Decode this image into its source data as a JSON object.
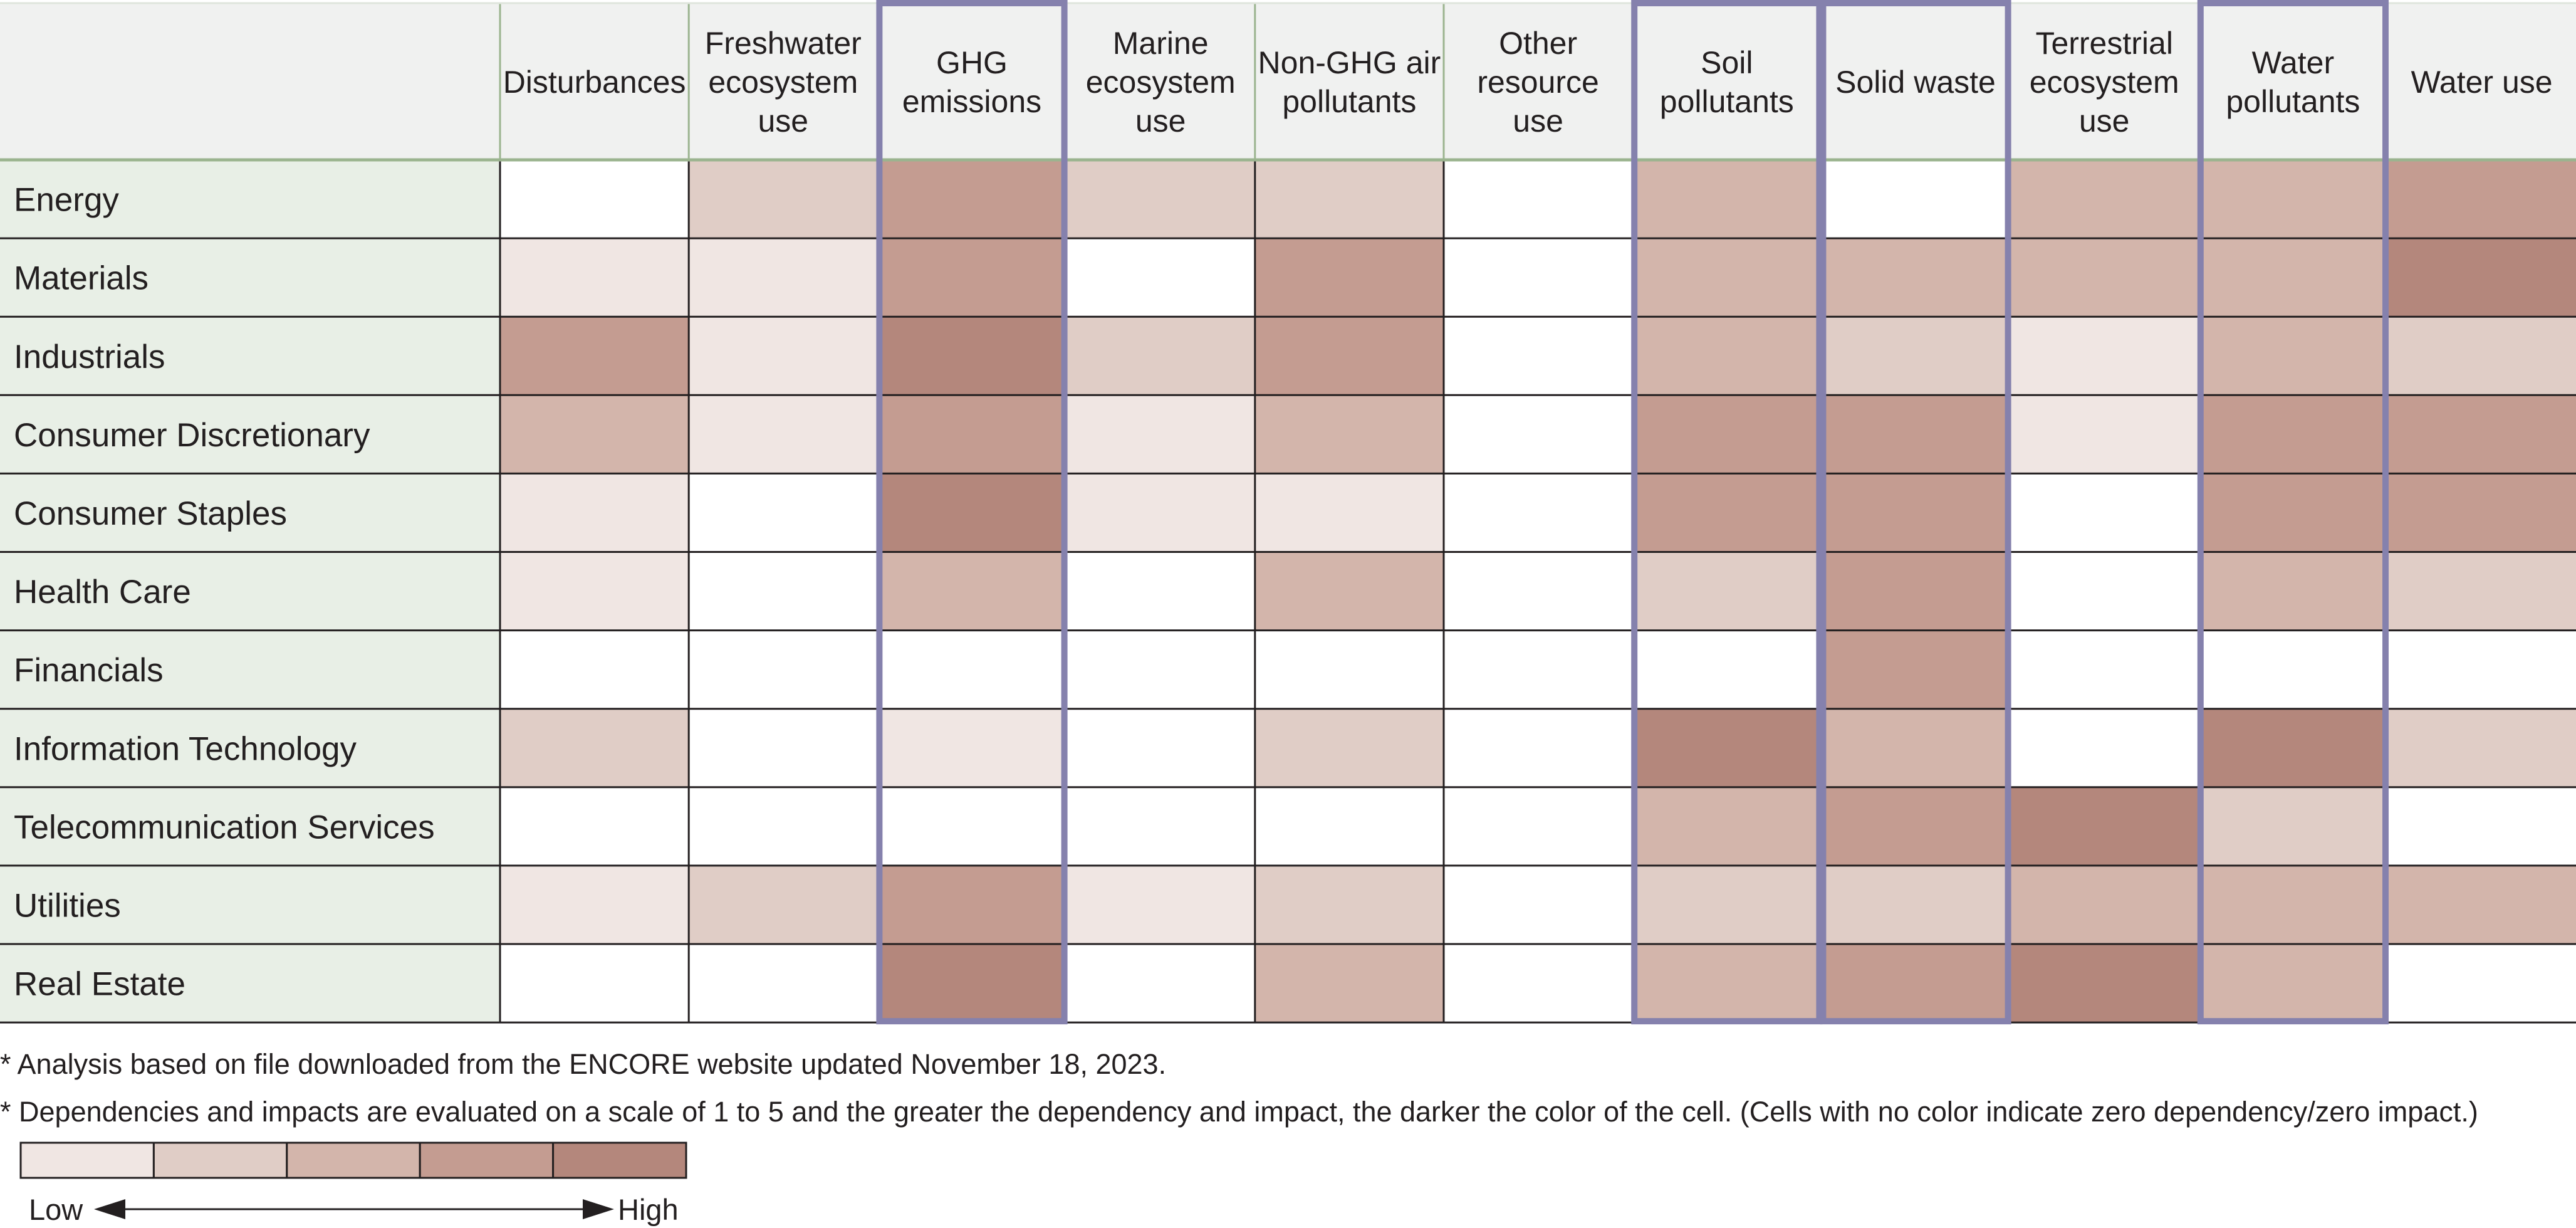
{
  "chart_data": {
    "type": "heatmap",
    "columns": [
      "Disturbances",
      "Freshwater ecosystem use",
      "GHG emissions",
      "Marine ecosystem use",
      "Non-GHG air pollutants",
      "Other resource use",
      "Soil pollutants",
      "Solid waste",
      "Terrestrial ecosystem use",
      "Water pollutants",
      "Water use"
    ],
    "column_lines": [
      [
        "Disturbances"
      ],
      [
        "Freshwater",
        "ecosystem",
        "use"
      ],
      [
        "GHG",
        "emissions"
      ],
      [
        "Marine",
        "ecosystem",
        "use"
      ],
      [
        "Non-GHG air",
        "pollutants"
      ],
      [
        "Other",
        "resource",
        "use"
      ],
      [
        "Soil",
        "pollutants"
      ],
      [
        "Solid waste"
      ],
      [
        "Terrestrial",
        "ecosystem",
        "use"
      ],
      [
        "Water",
        "pollutants"
      ],
      [
        "Water use"
      ]
    ],
    "rows": [
      "Energy",
      "Materials",
      "Industrials",
      "Consumer Discretionary",
      "Consumer Staples",
      "Health Care",
      "Financials",
      "Information Technology",
      "Telecommunication Services",
      "Utilities",
      "Real Estate"
    ],
    "values": [
      [
        0,
        2,
        4,
        2,
        2,
        0,
        3,
        0,
        3,
        3,
        4
      ],
      [
        1,
        1,
        4,
        0,
        4,
        0,
        3,
        3,
        3,
        3,
        5
      ],
      [
        4,
        1,
        5,
        2,
        4,
        0,
        3,
        2,
        1,
        3,
        2
      ],
      [
        3,
        1,
        4,
        1,
        3,
        0,
        4,
        4,
        1,
        4,
        4
      ],
      [
        1,
        0,
        5,
        1,
        1,
        0,
        4,
        4,
        0,
        4,
        4
      ],
      [
        1,
        0,
        3,
        0,
        3,
        0,
        2,
        4,
        0,
        3,
        2
      ],
      [
        0,
        0,
        0,
        0,
        0,
        0,
        0,
        4,
        0,
        0,
        0
      ],
      [
        2,
        0,
        1,
        0,
        2,
        0,
        5,
        3,
        0,
        5,
        2
      ],
      [
        0,
        0,
        0,
        0,
        0,
        0,
        3,
        4,
        5,
        2,
        0
      ],
      [
        1,
        2,
        4,
        1,
        2,
        0,
        2,
        2,
        3,
        3,
        3
      ],
      [
        0,
        0,
        5,
        0,
        3,
        0,
        3,
        4,
        5,
        3,
        0
      ]
    ],
    "scale": [
      1,
      2,
      3,
      4,
      5
    ],
    "highlighted_columns": [
      "GHG emissions",
      "Soil pollutants",
      "Solid waste",
      "Water pollutants"
    ],
    "colors": {
      "scale": [
        "#f0e6e3",
        "#e0cdc6",
        "#d3b5ab",
        "#c49c91",
        "#b4877c"
      ],
      "empty": "#ffffff",
      "row_label_bg": "#e8efe6",
      "header_bg": "#f0f1f0",
      "header_rule": "#9bb48f",
      "highlight": "#8581ad",
      "grid": "#231f20"
    }
  },
  "notes": {
    "line1": "* Analysis based on file downloaded from the ENCORE website updated November 18, 2023.",
    "line2": "* Dependencies and impacts are evaluated on a scale of 1 to 5 and the greater the dependency and impact, the darker the color of the cell. (Cells with no color indicate zero dependency/zero impact.)"
  },
  "legend": {
    "low_label": "Low",
    "high_label": "High"
  }
}
